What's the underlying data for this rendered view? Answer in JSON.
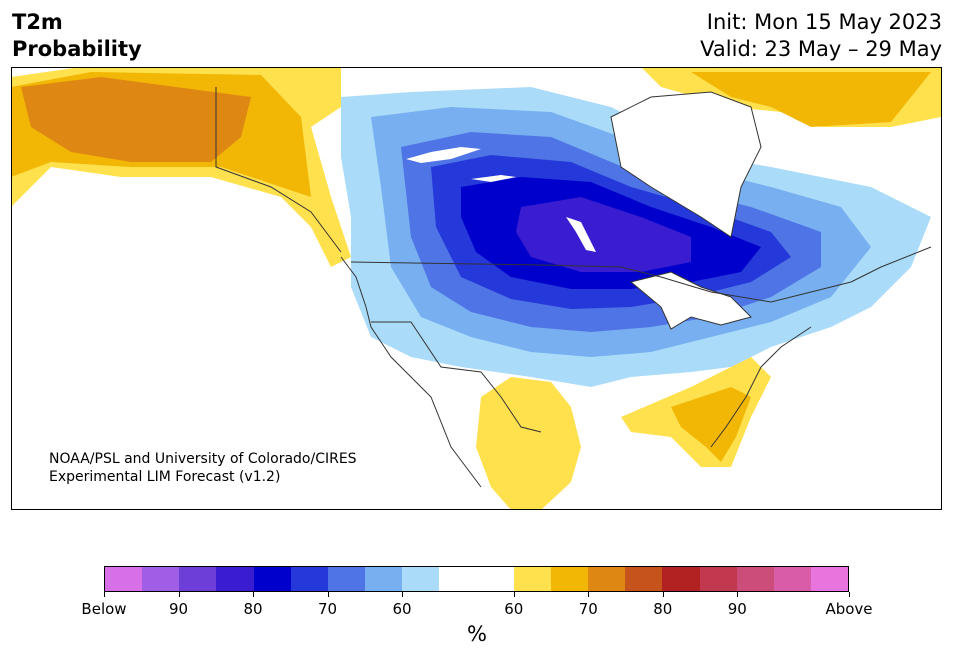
{
  "title": {
    "line1": "T2m",
    "line2": "Probability"
  },
  "init": "Init: Mon 15 May 2023",
  "valid": "Valid: 23 May – 29 May",
  "credit": {
    "line1": "NOAA/PSL and University of Colorado/CIRES",
    "line2": "Experimental LIM Forecast (v1.2)"
  },
  "colorbar": {
    "colors": [
      "#d66fe8",
      "#a05ee6",
      "#6e3ed9",
      "#3a1dd0",
      "#0000cc",
      "#2538d9",
      "#4f74e6",
      "#77aff0",
      "#aadcfa",
      "#ffffff",
      "#ffffff",
      "#ffe14d",
      "#f2b705",
      "#de8713",
      "#c6531b",
      "#b22222",
      "#c2384e",
      "#cc4d7a",
      "#d95ca8",
      "#e874de"
    ],
    "ticks": [
      "Below",
      "90",
      "80",
      "70",
      "60",
      "60",
      "70",
      "80",
      "90",
      "Above"
    ],
    "unit": "%"
  },
  "legend_meaning": {
    "cold": "below-normal probability (blue/purple)",
    "warm": "above-normal probability (yellow/orange/red)"
  }
}
